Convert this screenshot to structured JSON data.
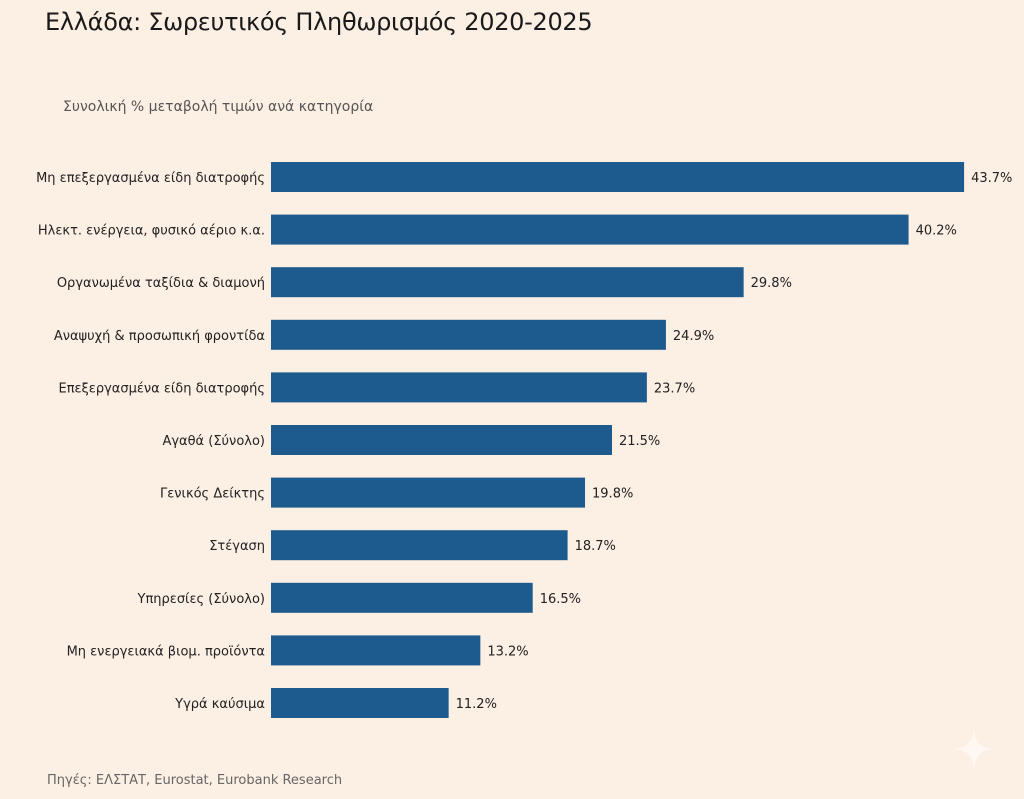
{
  "title": "Ελλάδα: Σωρευτικός Πληθωρισμός 2020-2025",
  "subtitle": "Συνολική % μεταβολή τιμών ανά κατηγορία",
  "source": "Πηγές: ΕΛΣΤΑΤ, Eurostat, Eurobank Research",
  "colors": {
    "bar": "#1d5a8e",
    "background": "#fcefe4"
  },
  "icons": {
    "watermark": "sparkle-icon"
  },
  "chart_data": {
    "type": "bar",
    "orientation": "horizontal",
    "title": "Ελλάδα: Σωρευτικός Πληθωρισμός 2020-2025",
    "subtitle": "Συνολική % μεταβολή τιμών ανά κατηγορία",
    "categories": [
      "Μη επεξεργασμένα είδη διατροφής",
      "Ηλεκτ. ενέργεια, φυσικό αέριο κ.α.",
      "Οργανωμένα ταξίδια & διαμονή",
      "Αναψυχή & προσωπική φροντίδα",
      "Επεξεργασμένα είδη διατροφής",
      "Αγαθά (Σύνολο)",
      "Γενικός Δείκτης",
      "Στέγαση",
      "Υπηρεσίες (Σύνολο)",
      "Μη ενεργειακά βιομ. προϊόντα",
      "Υγρά καύσιμα"
    ],
    "values": [
      43.7,
      40.2,
      29.8,
      24.9,
      23.7,
      21.5,
      19.8,
      18.7,
      16.5,
      13.2,
      11.2
    ],
    "data_labels": [
      "43.7%",
      "40.2%",
      "29.8%",
      "24.9%",
      "23.7%",
      "21.5%",
      "19.8%",
      "18.7%",
      "16.5%",
      "13.2%",
      "11.2%"
    ],
    "grid": false,
    "legend": "none"
  }
}
